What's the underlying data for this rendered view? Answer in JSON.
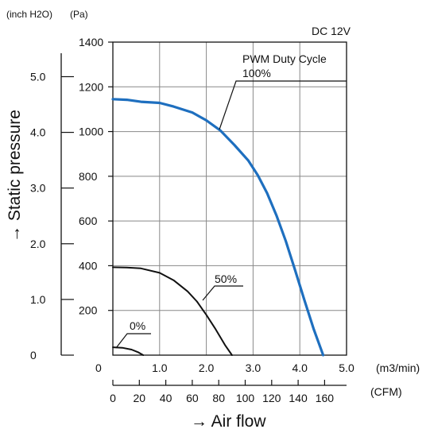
{
  "units": {
    "inch": "(inch H2O)",
    "pa": "(Pa)",
    "m3": "(m3/min)",
    "cfm": "(CFM)"
  },
  "condition": "DC 12V",
  "legend": {
    "title": "PWM Duty Cycle",
    "labels": [
      "100%",
      "50%",
      "0%"
    ]
  },
  "ylabel": "→ Static pressure",
  "xlabel": "→ Air flow",
  "chart_data": {
    "type": "line",
    "title": "DC 12V",
    "xlabel": "Air flow",
    "ylabel": "Static pressure",
    "xlim": [
      0,
      5.0
    ],
    "ylim": [
      0,
      1400
    ],
    "grid": true,
    "x_ticks_m3min": [
      "0",
      "1.0",
      "2.0",
      "3.0",
      "4.0",
      "5.0"
    ],
    "y_ticks_pa": [
      "200",
      "400",
      "600",
      "800",
      "1000",
      "1200",
      "1400"
    ],
    "y_ticks_inch": [
      "0",
      "1.0",
      "2.0",
      "3.0",
      "4.0",
      "5.0"
    ],
    "cfm_ticks": [
      "0",
      "20",
      "40",
      "60",
      "80",
      "100",
      "120",
      "140",
      "160"
    ],
    "series": [
      {
        "name": "100%",
        "color": "#1e6fbf",
        "x": [
          0,
          0.3,
          0.6,
          1.0,
          1.3,
          1.7,
          2.0,
          2.3,
          2.6,
          2.9,
          3.1,
          3.3,
          3.5,
          3.7,
          3.9,
          4.1,
          4.3,
          4.5
        ],
        "y": [
          1145,
          1142,
          1133,
          1128,
          1112,
          1085,
          1050,
          1005,
          940,
          870,
          805,
          725,
          625,
          510,
          380,
          245,
          115,
          0
        ]
      },
      {
        "name": "50%",
        "color": "#111111",
        "x": [
          0,
          0.3,
          0.6,
          1.0,
          1.3,
          1.6,
          1.8,
          2.0,
          2.2,
          2.4,
          2.55
        ],
        "y": [
          393,
          392,
          388,
          368,
          335,
          285,
          240,
          180,
          115,
          45,
          0
        ]
      },
      {
        "name": "0%",
        "color": "#111111",
        "x": [
          0,
          0.2,
          0.4,
          0.55,
          0.65
        ],
        "y": [
          35,
          33,
          25,
          12,
          0
        ]
      }
    ]
  }
}
